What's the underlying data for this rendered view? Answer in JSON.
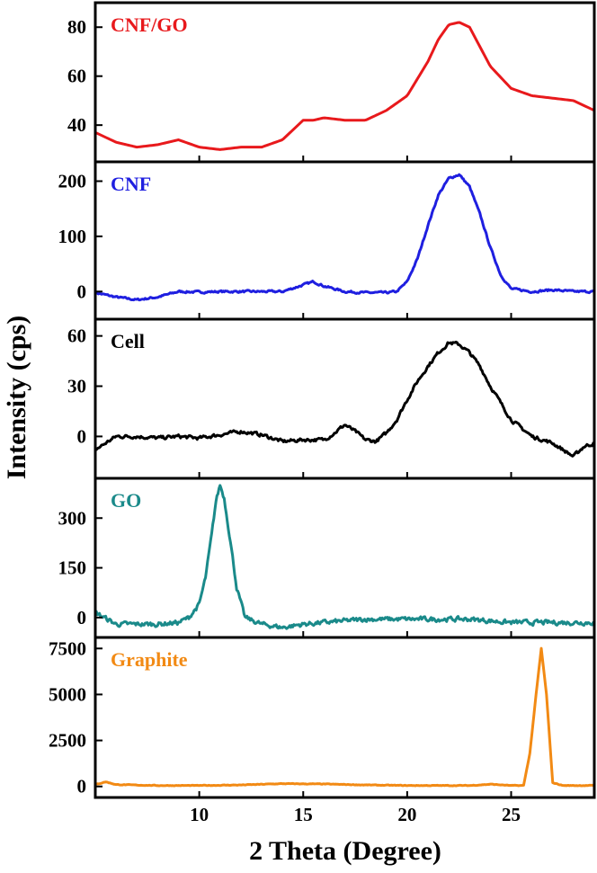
{
  "chart_data": {
    "type": "line",
    "layout": "stacked-panels",
    "xlabel": "2 Theta (Degree)",
    "ylabel": "Intensity (cps)",
    "xlim": [
      5,
      29
    ],
    "x_ticks": [
      10,
      15,
      20,
      25
    ],
    "x_tick_labels": [
      "10",
      "15",
      "20",
      "25"
    ],
    "panels": [
      {
        "name": "CNF/GO",
        "color": "#e8191c",
        "ylim": [
          25,
          90
        ],
        "y_ticks": [
          40,
          60,
          80
        ],
        "y_tick_labels": [
          "40",
          "60",
          "80"
        ],
        "x": [
          5,
          6,
          7,
          8,
          9,
          10,
          11,
          12,
          13,
          14,
          15,
          15.5,
          16,
          17,
          18,
          19,
          20,
          21,
          21.5,
          22,
          22.5,
          23,
          24,
          25,
          26,
          27,
          28,
          29
        ],
        "y": [
          37,
          33,
          31,
          32,
          34,
          31,
          30,
          31,
          31,
          34,
          42,
          42,
          43,
          42,
          42,
          46,
          52,
          66,
          75,
          81,
          82,
          80,
          64,
          55,
          52,
          51,
          50,
          46
        ]
      },
      {
        "name": "CNF",
        "color": "#1f1fe0",
        "ylim": [
          -50,
          235
        ],
        "y_ticks": [
          0,
          100,
          200
        ],
        "y_tick_labels": [
          "0",
          "100",
          "200"
        ],
        "x": [
          5,
          6,
          7,
          8,
          9,
          10,
          11,
          12,
          13,
          14,
          15,
          15.5,
          16,
          17,
          18,
          19,
          19.5,
          20,
          20.5,
          21,
          21.5,
          22,
          22.5,
          23,
          23.5,
          24,
          24.5,
          25,
          26,
          27,
          28,
          29
        ],
        "y": [
          -2,
          -10,
          -15,
          -10,
          0,
          -1,
          0,
          0,
          0,
          0,
          12,
          18,
          10,
          0,
          -2,
          -2,
          0,
          18,
          60,
          120,
          175,
          205,
          212,
          190,
          140,
          80,
          30,
          5,
          0,
          3,
          0,
          0
        ],
        "noise": 1.6
      },
      {
        "name": "Cell",
        "color": "#000000",
        "ylim": [
          -25,
          70
        ],
        "y_ticks": [
          0,
          30,
          60
        ],
        "y_tick_labels": [
          "0",
          "30",
          "60"
        ],
        "x": [
          5,
          6,
          7,
          8,
          9,
          10,
          11,
          12,
          13,
          14,
          15,
          16,
          16.5,
          17,
          17.5,
          18,
          18.5,
          19,
          19.5,
          20,
          20.5,
          21,
          21.5,
          22,
          22.5,
          23,
          23.5,
          24,
          24.5,
          25,
          26,
          27,
          28,
          28.5,
          29
        ],
        "y": [
          -8,
          0,
          0,
          -1,
          0,
          -1,
          1,
          3,
          1,
          -3,
          -2,
          -2,
          2,
          7,
          3,
          -2,
          -3,
          2,
          10,
          22,
          33,
          42,
          50,
          56,
          55,
          50,
          42,
          30,
          20,
          10,
          0,
          -4,
          -12,
          -6,
          -4
        ],
        "noise": 0.9
      },
      {
        "name": "GO",
        "color": "#1a8a8a",
        "ylim": [
          -60,
          420
        ],
        "y_ticks": [
          0,
          150,
          300
        ],
        "y_tick_labels": [
          "0",
          "150",
          "300"
        ],
        "x": [
          5,
          6,
          7,
          8,
          9,
          9.5,
          10,
          10.3,
          10.6,
          10.8,
          11,
          11.2,
          11.5,
          11.8,
          12.2,
          13,
          14,
          15,
          16,
          17,
          18,
          19,
          20,
          21,
          22,
          23,
          24,
          25,
          26,
          27,
          28,
          29
        ],
        "y": [
          15,
          -20,
          -20,
          -20,
          -15,
          0,
          40,
          120,
          250,
          350,
          400,
          360,
          230,
          90,
          0,
          -20,
          -30,
          -20,
          -15,
          -10,
          -5,
          -5,
          -5,
          -5,
          -5,
          -5,
          -10,
          -15,
          -15,
          -15,
          -15,
          -15
        ],
        "noise": 6
      },
      {
        "name": "Graphite",
        "color": "#f28a14",
        "ylim": [
          -600,
          8100
        ],
        "y_ticks": [
          0,
          2500,
          5000,
          7500
        ],
        "y_tick_labels": [
          "0",
          "2500",
          "5000",
          "7500"
        ],
        "x": [
          5,
          5.5,
          6,
          8,
          10,
          12,
          14,
          16,
          18,
          20,
          22,
          23,
          24,
          25,
          25.6,
          25.9,
          26.2,
          26.45,
          26.7,
          27,
          27.5,
          28,
          29
        ],
        "y": [
          100,
          250,
          100,
          50,
          50,
          80,
          150,
          130,
          80,
          50,
          50,
          50,
          120,
          50,
          50,
          1800,
          5000,
          7500,
          5000,
          200,
          50,
          50,
          50
        ],
        "noise": 15
      }
    ]
  }
}
